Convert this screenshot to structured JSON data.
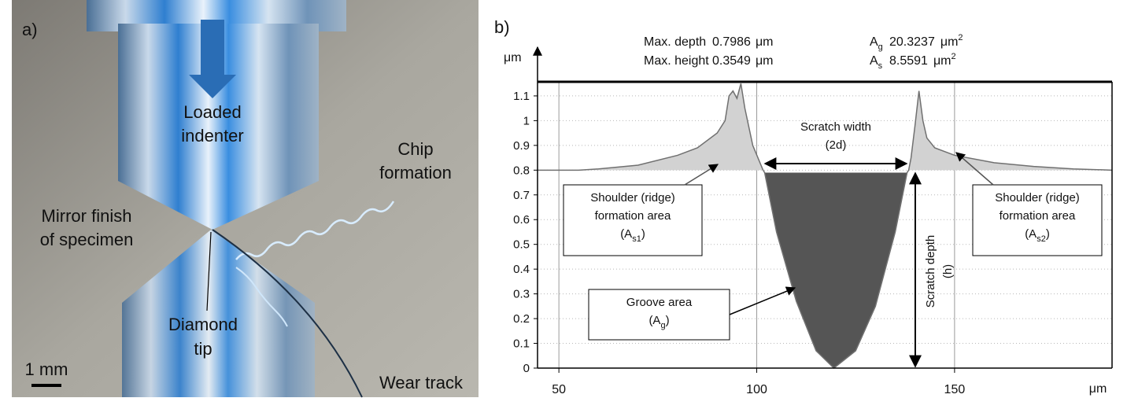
{
  "panel_a": {
    "label": "a)",
    "indenter": [
      "Loaded",
      "indenter"
    ],
    "chip": [
      "Chip",
      "formation"
    ],
    "mirror": [
      "Mirror finish",
      "of specimen"
    ],
    "tip": [
      "Diamond",
      "tip"
    ],
    "wear": "Wear track",
    "scale_bar": "1 mm"
  },
  "chart_data": {
    "type": "area",
    "panel_label": "b)",
    "stats_left": [
      {
        "label": "Max. depth",
        "value": 0.7986,
        "unit": "μm"
      },
      {
        "label": "Max. height",
        "value": 0.3549,
        "unit": "μm"
      }
    ],
    "stats_right": [
      {
        "symbol": "A",
        "sub": "g",
        "value": 20.3237,
        "unit": "μm",
        "sup": "2"
      },
      {
        "symbol": "A",
        "sub": "s",
        "value": 8.5591,
        "unit": "μm",
        "sup": "2"
      }
    ],
    "x_label": "μm",
    "y_label": "μm",
    "xlim": [
      44.6,
      189.8
    ],
    "ylim": [
      0,
      1.157
    ],
    "xticks": [
      50,
      100,
      150
    ],
    "yticks": [
      0,
      0.1,
      0.2,
      0.3,
      0.4,
      0.5,
      0.6,
      0.7,
      0.8,
      0.9,
      1,
      1.1
    ],
    "grid": true,
    "line_color": "#707070",
    "shoulder_color": "#d2d2d2",
    "groove_color": "#555555",
    "x": [
      44.6,
      55,
      60,
      70,
      80,
      85,
      90,
      92,
      93,
      94,
      95,
      96,
      97,
      99,
      101.6,
      102,
      105,
      110,
      115,
      119.5,
      125,
      130,
      135,
      138,
      138.4,
      139,
      140,
      141,
      142,
      143,
      145,
      150,
      160,
      170,
      180,
      189.8
    ],
    "values": [
      0.8,
      0.8,
      0.805,
      0.82,
      0.86,
      0.89,
      0.95,
      1.0,
      1.1,
      1.12,
      1.09,
      1.15,
      1.05,
      0.9,
      0.8,
      0.79,
      0.55,
      0.27,
      0.07,
      0,
      0.07,
      0.25,
      0.55,
      0.79,
      0.8,
      0.85,
      0.98,
      1.12,
      1.0,
      0.93,
      0.89,
      0.86,
      0.83,
      0.815,
      0.805,
      0.8
    ],
    "annotations": {
      "shoulder_left": {
        "lines": [
          "Shoulder (ridge)",
          "formation area"
        ],
        "open": "(A",
        "sub": "s1",
        "close": ")"
      },
      "shoulder_right": {
        "lines": [
          "Shoulder (ridge)",
          "formation area"
        ],
        "open": "(A",
        "sub": "s2",
        "close": ")"
      },
      "groove": {
        "lines": [
          "Groove area"
        ],
        "open": "(A",
        "sub": "g",
        "close": ")"
      },
      "width": [
        "Scratch width",
        "(2d)"
      ],
      "depth": [
        "Scratch depth",
        "(h)"
      ]
    }
  }
}
